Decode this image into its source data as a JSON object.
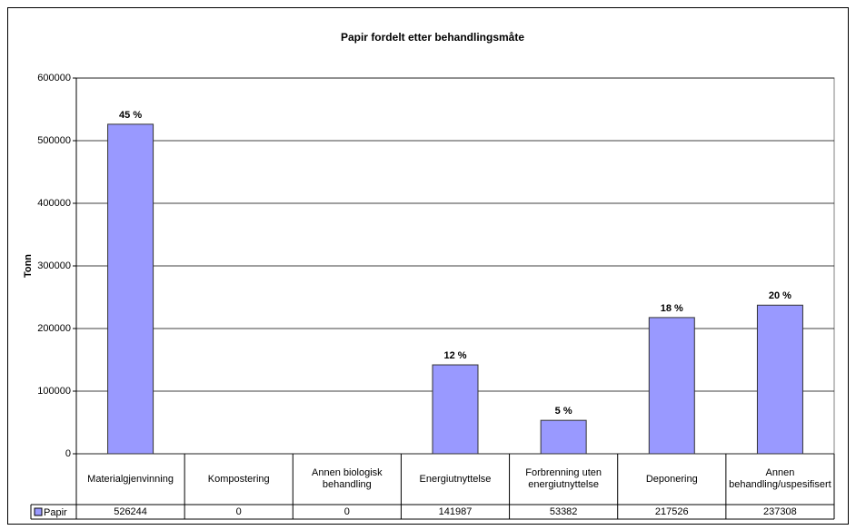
{
  "chart_data": {
    "type": "bar",
    "title": "Papir fordelt etter behandlingsmåte",
    "y_label": "Tonn",
    "categories": [
      "Materialgjenvinning",
      "Kompostering",
      "Annen biologisk behandling",
      "Energiutnyttelse",
      "Forbrenning uten energiutnyttelse",
      "Deponering",
      "Annen behandling/uspesifisert"
    ],
    "series": [
      {
        "name": "Papir",
        "color": "#9999ff",
        "values": [
          526244,
          0,
          0,
          141987,
          53382,
          217526,
          237308
        ]
      }
    ],
    "data_labels": [
      "45 %",
      null,
      null,
      "12 %",
      "5 %",
      "18 %",
      "20 %"
    ],
    "ylim": [
      0,
      600000
    ],
    "yticks": [
      0,
      100000,
      200000,
      300000,
      400000,
      500000,
      600000
    ],
    "grid": true
  }
}
